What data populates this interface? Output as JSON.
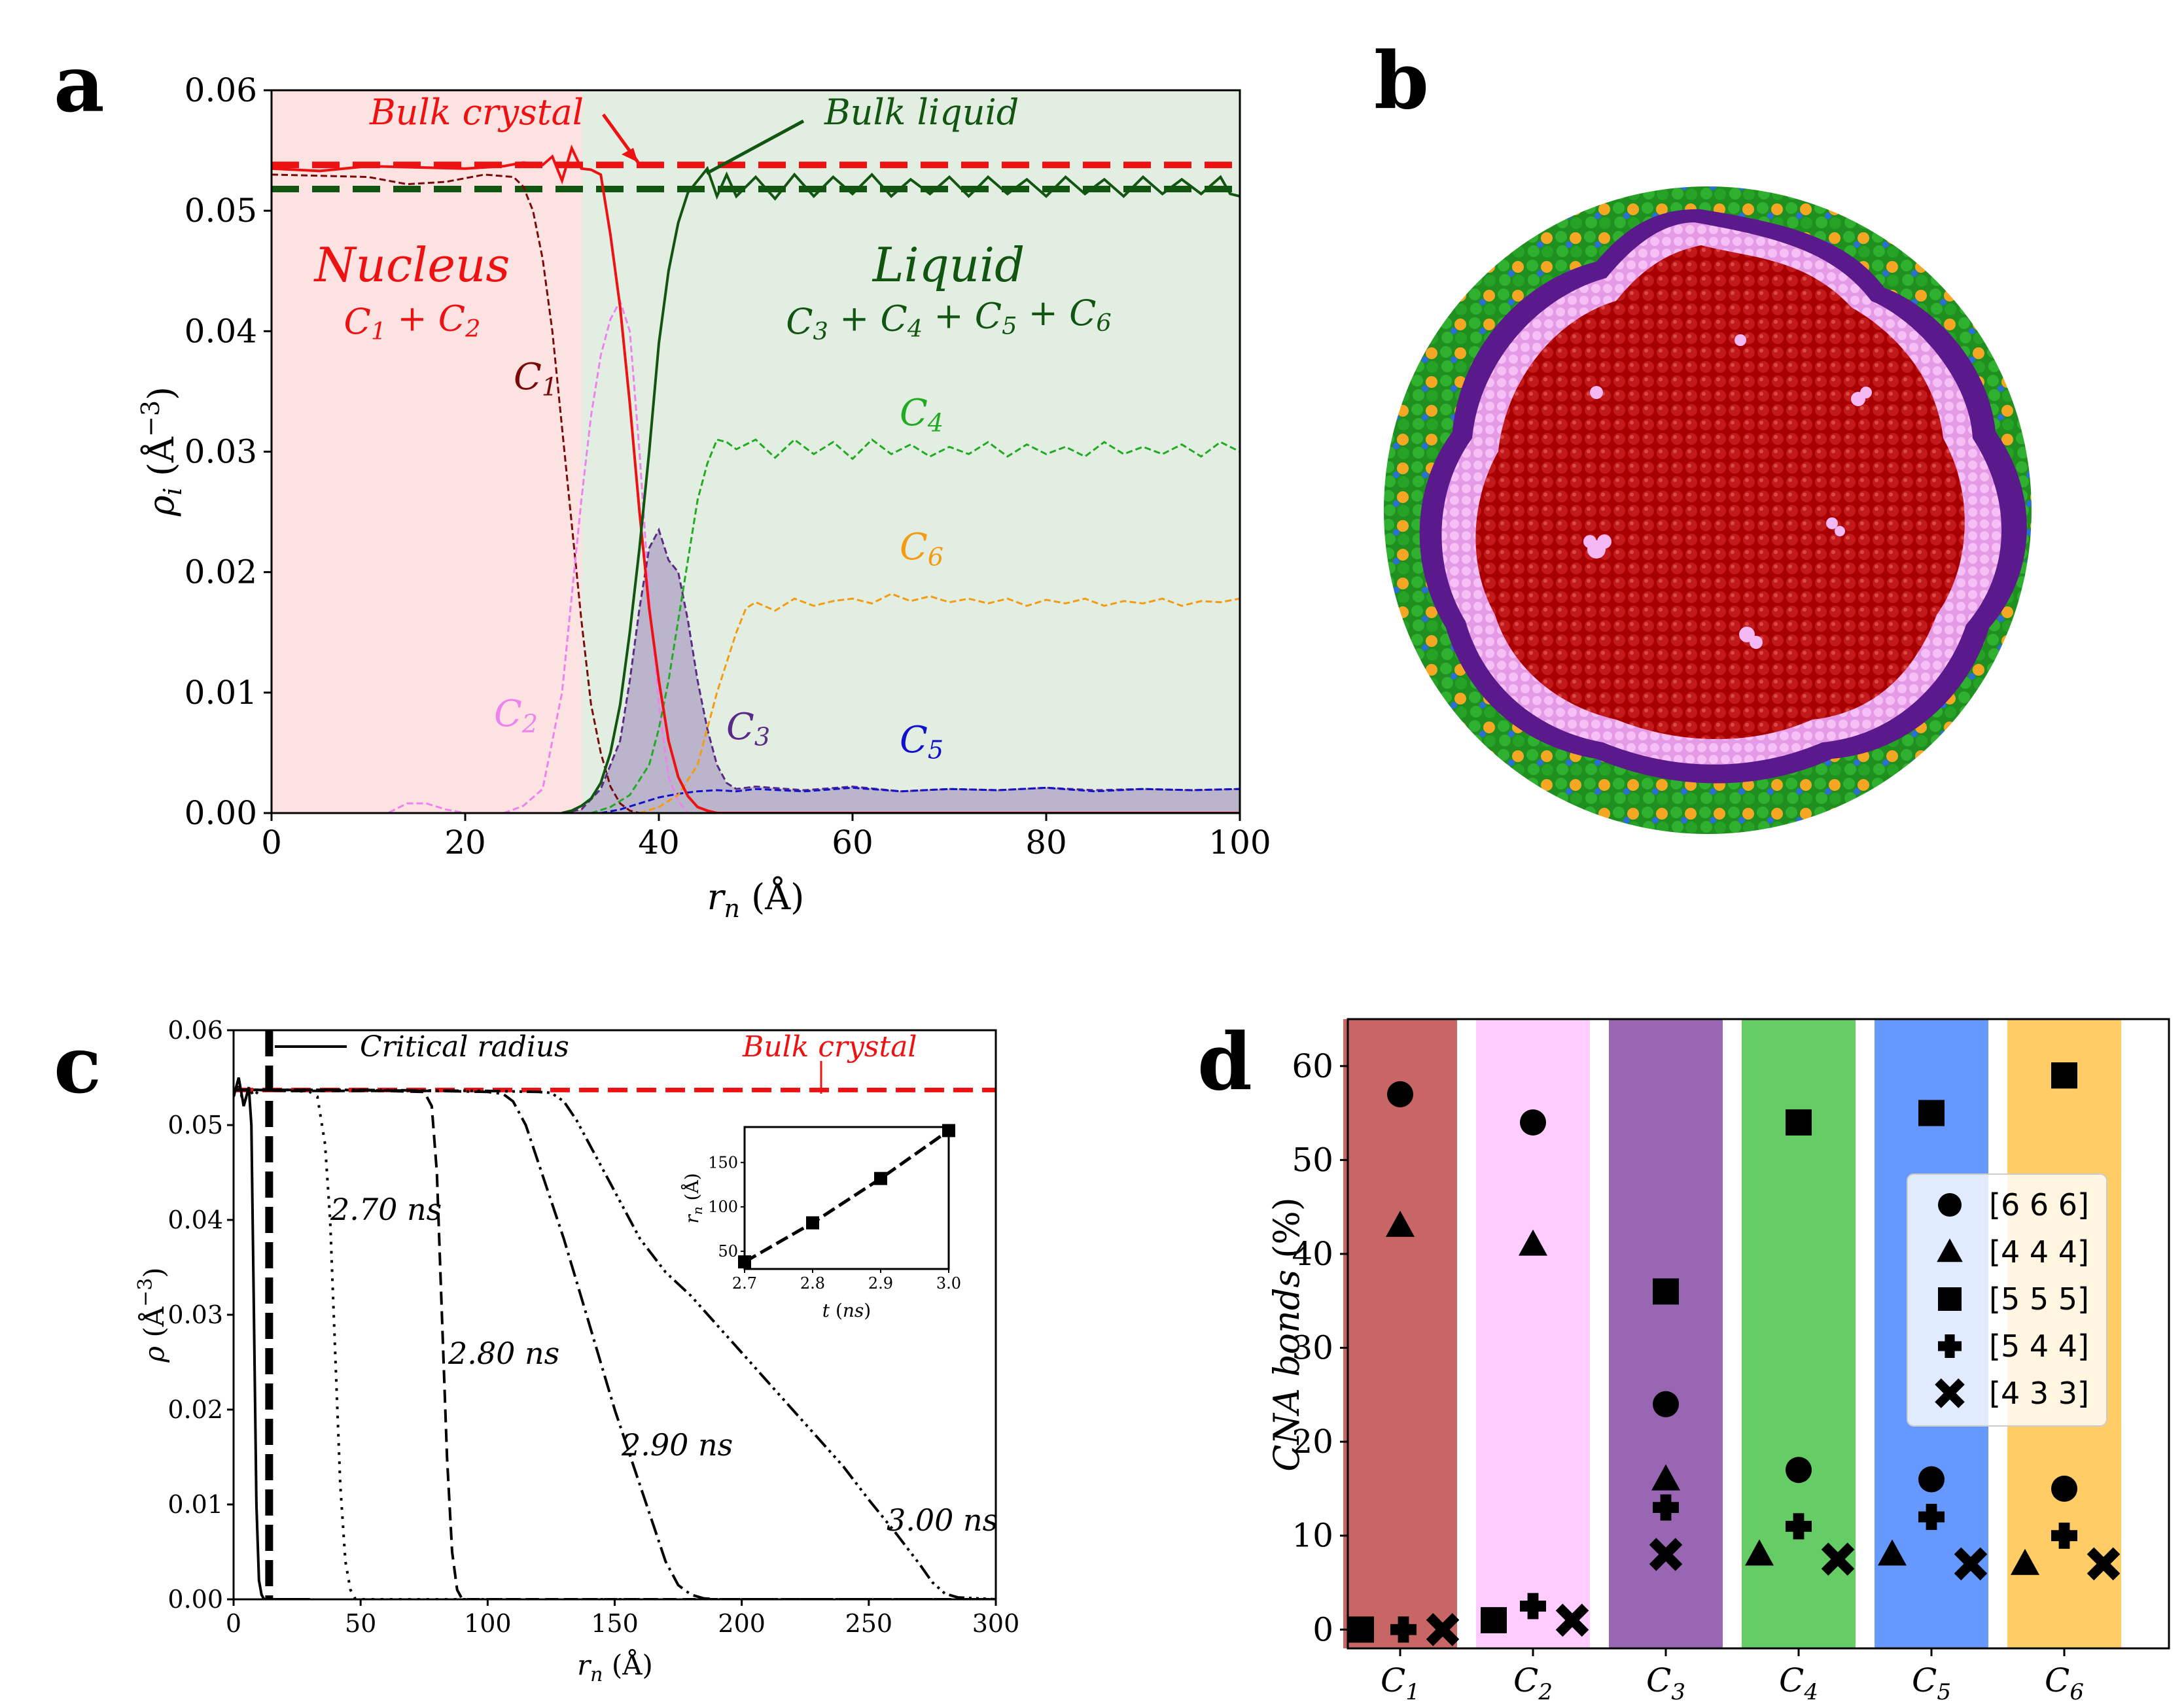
{
  "panels": {
    "a": "a",
    "b": "b",
    "c": "c",
    "d": "d"
  },
  "chart_data": [
    {
      "panel": "a",
      "type": "line",
      "xlabel": "r_n (Å)",
      "ylabel": "ρ_i (Å^-3)",
      "xlim": [
        0,
        100
      ],
      "ylim": [
        0,
        0.06
      ],
      "xticks": [
        "0",
        "20",
        "40",
        "60",
        "80",
        "100"
      ],
      "yticks": [
        "0.00",
        "0.01",
        "0.02",
        "0.03",
        "0.04",
        "0.05",
        "0.06"
      ],
      "colors": {
        "crystal": "#ee1111",
        "liquid": "#115511",
        "c1": "#7a0a0a",
        "c2": "#ee82ee",
        "c3": "#5b2a86",
        "c4": "#22aa22",
        "c5": "#1111cc",
        "c6": "#f39c12"
      },
      "annotations": {
        "bulk_crystal": "Bulk crystal",
        "bulk_liquid": "Bulk liquid",
        "nucleus": "Nucleus",
        "nucleus_sum": "C1 + C2",
        "liquid": "Liquid",
        "liquid_sum": "C3 + C4 + C5 + C6",
        "c1": "C1",
        "c2": "C2",
        "c3": "C3",
        "c4": "C4",
        "c5": "C5",
        "c6": "C6"
      },
      "references": {
        "bulk_crystal": 0.0538,
        "bulk_liquid": 0.0518
      },
      "series": [
        {
          "key": "crystal",
          "x": [
            0,
            5,
            10,
            15,
            20,
            24,
            26,
            28,
            29,
            30,
            31,
            32,
            33,
            34,
            35,
            36,
            37,
            38,
            39,
            40,
            41,
            42,
            43,
            44,
            45,
            46,
            47,
            100
          ],
          "y": [
            0.0535,
            0.0533,
            0.0537,
            0.0536,
            0.0535,
            0.0537,
            0.054,
            0.0538,
            0.0545,
            0.0525,
            0.0552,
            0.0535,
            0.0534,
            0.053,
            0.048,
            0.042,
            0.034,
            0.025,
            0.017,
            0.011,
            0.006,
            0.003,
            0.0014,
            0.0005,
            0.0002,
            0,
            0,
            0
          ]
        },
        {
          "key": "liquid",
          "x": [
            30,
            31,
            32,
            33,
            34,
            35,
            36,
            37,
            38,
            39,
            40,
            41,
            42,
            43,
            44,
            45,
            46,
            47,
            48,
            50,
            52,
            54,
            56,
            58,
            60,
            62,
            64,
            66,
            68,
            70,
            72,
            74,
            76,
            78,
            80,
            82,
            84,
            86,
            88,
            90,
            92,
            94,
            96,
            98,
            99,
            100
          ],
          "y": [
            0,
            0.0002,
            0.0006,
            0.0012,
            0.0025,
            0.005,
            0.009,
            0.015,
            0.022,
            0.03,
            0.039,
            0.045,
            0.049,
            0.0515,
            0.0525,
            0.0535,
            0.0512,
            0.053,
            0.0512,
            0.0528,
            0.051,
            0.053,
            0.0512,
            0.0528,
            0.0514,
            0.053,
            0.0512,
            0.0526,
            0.0514,
            0.0528,
            0.0512,
            0.0528,
            0.0514,
            0.0526,
            0.0512,
            0.0528,
            0.0514,
            0.0526,
            0.0512,
            0.0528,
            0.0514,
            0.0526,
            0.0514,
            0.0528,
            0.0514,
            0.0512
          ]
        }
      ],
      "components": [
        {
          "key": "c1",
          "x": [
            0,
            10,
            14,
            18,
            22,
            25,
            26,
            27,
            28,
            29,
            30,
            31,
            32,
            33,
            34,
            35,
            36,
            37,
            38,
            100
          ],
          "y": [
            0.053,
            0.0528,
            0.0522,
            0.0524,
            0.053,
            0.0528,
            0.052,
            0.05,
            0.046,
            0.04,
            0.032,
            0.024,
            0.016,
            0.009,
            0.005,
            0.0022,
            0.0008,
            0.0002,
            0,
            0
          ]
        },
        {
          "key": "c2",
          "x": [
            0,
            12,
            14,
            16,
            18,
            20,
            22,
            24,
            26,
            28,
            30,
            31,
            32,
            33,
            34,
            35,
            36,
            37,
            38,
            39,
            40,
            41,
            42,
            43,
            100
          ],
          "y": [
            0,
            0,
            0.0008,
            0.0008,
            0.0003,
            0,
            0,
            0,
            0.0006,
            0.002,
            0.01,
            0.018,
            0.026,
            0.033,
            0.038,
            0.041,
            0.0425,
            0.04,
            0.03,
            0.018,
            0.009,
            0.003,
            0.001,
            0,
            0
          ]
        },
        {
          "key": "c3",
          "x": [
            30,
            32,
            34,
            36,
            37,
            38,
            39,
            40,
            41,
            42,
            43,
            44,
            45,
            46,
            47,
            48,
            50,
            55,
            60,
            65,
            70,
            75,
            80,
            85,
            90,
            95,
            100
          ],
          "y": [
            0,
            0.0003,
            0.002,
            0.006,
            0.011,
            0.017,
            0.022,
            0.0235,
            0.021,
            0.02,
            0.016,
            0.011,
            0.007,
            0.004,
            0.0025,
            0.002,
            0.0022,
            0.0019,
            0.0022,
            0.0018,
            0.002,
            0.0019,
            0.0021,
            0.0019,
            0.002,
            0.0019,
            0.002
          ]
        },
        {
          "key": "c4",
          "x": [
            33,
            35,
            37,
            39,
            40,
            41,
            42,
            43,
            44,
            45,
            46,
            47,
            48,
            50,
            52,
            54,
            56,
            58,
            60,
            62,
            64,
            66,
            68,
            70,
            72,
            74,
            76,
            78,
            80,
            82,
            84,
            86,
            88,
            90,
            92,
            94,
            96,
            98,
            100
          ],
          "y": [
            0,
            0.0005,
            0.0015,
            0.004,
            0.007,
            0.011,
            0.016,
            0.021,
            0.026,
            0.029,
            0.031,
            0.0308,
            0.0302,
            0.031,
            0.0295,
            0.031,
            0.0298,
            0.0308,
            0.0294,
            0.031,
            0.0298,
            0.0306,
            0.0296,
            0.0304,
            0.0298,
            0.0308,
            0.0296,
            0.0306,
            0.0298,
            0.0304,
            0.0296,
            0.0308,
            0.0298,
            0.0304,
            0.0298,
            0.0306,
            0.0296,
            0.0308,
            0.03
          ]
        },
        {
          "key": "c5",
          "x": [
            34,
            36,
            38,
            40,
            42,
            44,
            46,
            48,
            50,
            55,
            60,
            65,
            70,
            75,
            80,
            85,
            90,
            95,
            100
          ],
          "y": [
            0,
            0.0003,
            0.0008,
            0.0013,
            0.0016,
            0.0018,
            0.0019,
            0.0018,
            0.002,
            0.0018,
            0.0021,
            0.0018,
            0.002,
            0.0019,
            0.0021,
            0.0018,
            0.002,
            0.0019,
            0.002
          ]
        },
        {
          "key": "c6",
          "x": [
            38,
            40,
            42,
            44,
            45,
            46,
            47,
            48,
            49,
            50,
            52,
            54,
            56,
            58,
            60,
            62,
            64,
            66,
            68,
            70,
            72,
            74,
            76,
            78,
            80,
            82,
            84,
            86,
            88,
            90,
            92,
            94,
            96,
            98,
            100
          ],
          "y": [
            0,
            0.0005,
            0.0015,
            0.004,
            0.007,
            0.01,
            0.0125,
            0.015,
            0.017,
            0.0175,
            0.0168,
            0.0178,
            0.0172,
            0.0176,
            0.0178,
            0.0174,
            0.0182,
            0.0176,
            0.018,
            0.0175,
            0.0178,
            0.0174,
            0.0178,
            0.0172,
            0.0177,
            0.0174,
            0.0178,
            0.0172,
            0.0176,
            0.0174,
            0.0178,
            0.0172,
            0.0176,
            0.0175,
            0.0178
          ]
        }
      ]
    },
    {
      "panel": "c",
      "type": "line",
      "xlabel": "r_n (Å)",
      "ylabel": "ρ (Å^-3)",
      "xlim": [
        0,
        300
      ],
      "ylim": [
        0,
        0.06
      ],
      "xticks": [
        "0",
        "50",
        "100",
        "150",
        "200",
        "250",
        "300"
      ],
      "yticks": [
        "0.00",
        "0.01",
        "0.02",
        "0.03",
        "0.04",
        "0.05",
        "0.06"
      ],
      "annotations": {
        "critical_radius": "Critical radius",
        "bulk_crystal": "Bulk crystal"
      },
      "critical_radius_x": 14,
      "bulk_crystal": 0.0537,
      "series": [
        {
          "name": "2.70 ns",
          "dash": "4,10",
          "x": [
            0,
            2,
            4,
            6,
            8,
            10,
            15,
            20,
            25,
            30,
            33,
            36,
            38,
            40,
            42,
            44,
            46,
            48,
            300
          ],
          "y": [
            0.053,
            0.0545,
            0.052,
            0.054,
            0.053,
            0.0537,
            0.0537,
            0.0536,
            0.0536,
            0.0535,
            0.053,
            0.048,
            0.04,
            0.026,
            0.012,
            0.004,
            0.001,
            0,
            0
          ]
        },
        {
          "name": "2.80 ns",
          "dash": "20,10",
          "x": [
            0,
            10,
            20,
            40,
            60,
            75,
            78,
            80,
            82,
            84,
            86,
            88,
            90,
            300
          ],
          "y": [
            0.0537,
            0.0537,
            0.0536,
            0.0536,
            0.0536,
            0.0535,
            0.052,
            0.045,
            0.03,
            0.015,
            0.005,
            0.001,
            0,
            0
          ]
        },
        {
          "name": "2.90 ns",
          "dash": "26,8,4,8",
          "x": [
            0,
            20,
            40,
            80,
            100,
            106,
            110,
            115,
            120,
            130,
            140,
            150,
            160,
            165,
            170,
            175,
            180,
            185,
            190,
            300
          ],
          "y": [
            0.0537,
            0.0537,
            0.0537,
            0.0536,
            0.0535,
            0.0533,
            0.0525,
            0.05,
            0.046,
            0.038,
            0.029,
            0.02,
            0.012,
            0.008,
            0.004,
            0.0015,
            0.0005,
            0.0001,
            0,
            0
          ]
        },
        {
          "name": "3.00 ns",
          "dash": "24,7,4,7,4,7,4,7",
          "x": [
            0,
            50,
            100,
            120,
            125,
            130,
            135,
            140,
            150,
            160,
            170,
            180,
            190,
            200,
            210,
            220,
            230,
            240,
            250,
            260,
            270,
            275,
            280,
            285,
            300
          ],
          "y": [
            0.0537,
            0.0537,
            0.0536,
            0.0535,
            0.0534,
            0.0525,
            0.0505,
            0.048,
            0.043,
            0.038,
            0.0345,
            0.032,
            0.029,
            0.026,
            0.023,
            0.02,
            0.017,
            0.014,
            0.0105,
            0.0072,
            0.0037,
            0.0018,
            0.0006,
            0.0002,
            0
          ]
        }
      ],
      "inset": {
        "xlabel": "t (ns)",
        "ylabel": "r_n (Å)",
        "xlim": [
          2.7,
          3.0
        ],
        "ylim": [
          30,
          190
        ],
        "xticks": [
          "2.7",
          "2.8",
          "2.9",
          "3.0"
        ],
        "yticks": [
          "50",
          "100",
          "150"
        ],
        "x": [
          2.7,
          2.8,
          2.9,
          3.0
        ],
        "y": [
          38,
          82,
          132,
          186
        ]
      }
    },
    {
      "panel": "d",
      "type": "scatter",
      "ylabel": "CNA bonds (%)",
      "ylim": [
        -2,
        65
      ],
      "yticks": [
        "0",
        "10",
        "20",
        "30",
        "40",
        "50",
        "60"
      ],
      "categories": [
        "C1",
        "C2",
        "C3",
        "C4",
        "C5",
        "C6"
      ],
      "band_colors": [
        "#c86565",
        "#ffccff",
        "#9966b3",
        "#66cc66",
        "#6699ff",
        "#ffcc66"
      ],
      "legend_position": "center-right",
      "series": [
        {
          "name": "[6 6 6]",
          "marker": "circle",
          "values": [
            57,
            54,
            24,
            17,
            16,
            15
          ]
        },
        {
          "name": "[4 4 4]",
          "marker": "triangle",
          "values": [
            43,
            41,
            16,
            8,
            8,
            7
          ]
        },
        {
          "name": "[5 5 5]",
          "marker": "square",
          "values": [
            0,
            1,
            36,
            54,
            55,
            59
          ]
        },
        {
          "name": "[5 4 4]",
          "marker": "plus",
          "values": [
            0,
            2.5,
            13,
            11,
            12,
            10
          ]
        },
        {
          "name": "[4 3 3]",
          "marker": "x",
          "values": [
            0,
            1,
            8,
            7.5,
            7,
            7
          ]
        }
      ]
    }
  ],
  "nucleus_image": {
    "colors": {
      "core": "#a80000",
      "interface": "#f0a8f0",
      "ring": "#5a1a8c",
      "shell_green": "#22a022",
      "shell_orange": "#f5a623",
      "shell_blue": "#2a6fd6"
    }
  }
}
